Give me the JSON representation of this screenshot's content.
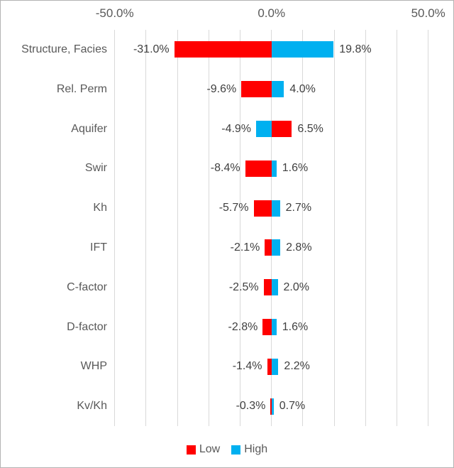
{
  "chart_data": {
    "type": "bar",
    "orientation": "horizontal",
    "subtype": "tornado",
    "title": "",
    "categories": [
      "Structure, Facies",
      "Rel. Perm",
      "Aquifer",
      "Swir",
      "Kh",
      "IFT",
      "C-factor",
      "D-factor",
      "WHP",
      "Kv/Kh"
    ],
    "series": [
      {
        "name": "Low",
        "color": "#FF0000",
        "values": [
          -31.0,
          -9.6,
          6.5,
          -8.4,
          -5.7,
          -2.1,
          -2.5,
          -2.8,
          -1.4,
          -0.3
        ]
      },
      {
        "name": "High",
        "color": "#00B0F0",
        "values": [
          19.8,
          4.0,
          -4.9,
          1.6,
          2.7,
          2.8,
          2.0,
          1.6,
          2.2,
          0.7
        ]
      }
    ],
    "data_labels": {
      "left": [
        "-31.0%",
        "-9.6%",
        "-4.9%",
        "-8.4%",
        "-5.7%",
        "-2.1%",
        "-2.5%",
        "-2.8%",
        "-1.4%",
        "-0.3%"
      ],
      "right": [
        "19.8%",
        "4.0%",
        "6.5%",
        "1.6%",
        "2.7%",
        "2.8%",
        "2.0%",
        "1.6%",
        "2.2%",
        "0.7%"
      ]
    },
    "x_axis": {
      "min": -50,
      "max": 50,
      "gridline_step": 10,
      "grid": true,
      "major_ticks": [
        {
          "value": -50,
          "label": "-50.0%"
        },
        {
          "value": 0,
          "label": "0.0%"
        },
        {
          "value": 50,
          "label": "50.0%"
        }
      ]
    },
    "legend": {
      "position": "bottom",
      "items": [
        {
          "label": "Low",
          "color": "#FF0000"
        },
        {
          "label": "High",
          "color": "#00B0F0"
        }
      ]
    }
  },
  "colors": {
    "background": "#FFFFFF",
    "border": "#B3B3B3",
    "gridline": "#D9D9D9",
    "axis_text": "#595959",
    "category_text": "#595959",
    "value_text": "#404040",
    "low": "#FF0000",
    "high": "#00B0F0"
  }
}
